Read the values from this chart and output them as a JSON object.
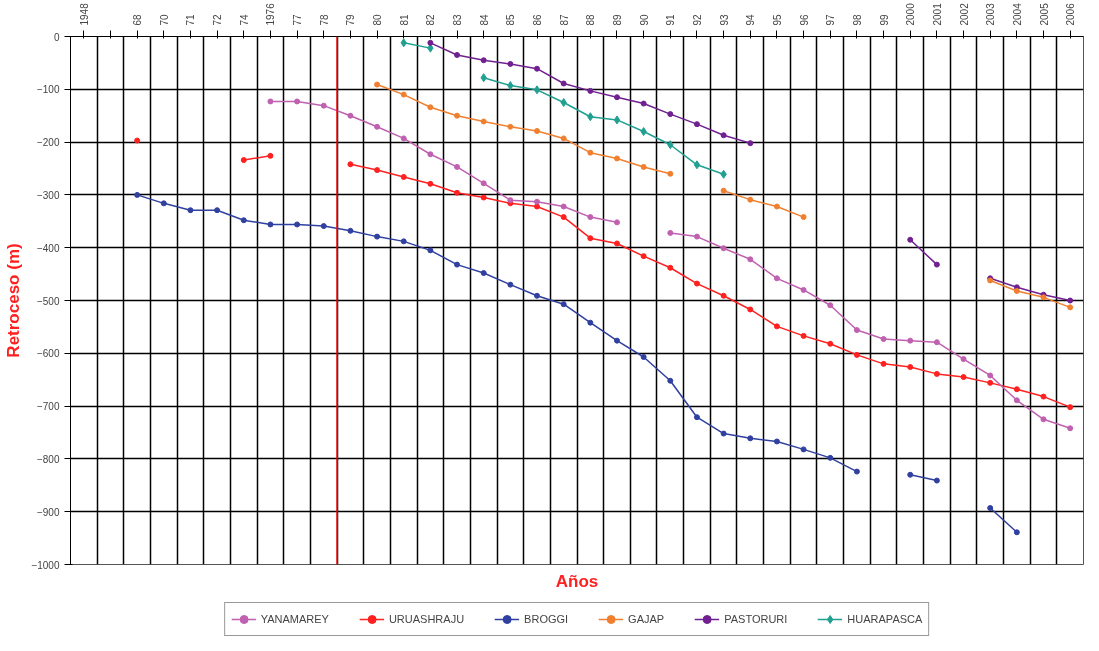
{
  "chart_data": {
    "type": "line",
    "xlabel": "Años",
    "ylabel": "Retroceso (m)",
    "categories": [
      "1948",
      null,
      "68",
      "70",
      "71",
      "72",
      "74",
      "1976",
      "77",
      "78",
      "79",
      "80",
      "81",
      "82",
      "83",
      "84",
      "85",
      "86",
      "87",
      "88",
      "89",
      "90",
      "91",
      "92",
      "93",
      "94",
      "95",
      "96",
      "97",
      "98",
      "99",
      "2000",
      "2001",
      "2002",
      "2003",
      "2004",
      "2005",
      "2006"
    ],
    "ylim": [
      -1000,
      0
    ],
    "yticks": [
      -1000,
      -900,
      -800,
      -700,
      -600,
      -500,
      -400,
      -300,
      -200,
      -100,
      0
    ],
    "grid": true,
    "legend": "bottom",
    "marker": "circle",
    "line_style": "solid",
    "ref_lines": [
      {
        "axis": "x",
        "value": "79",
        "color": "#ff0000"
      }
    ],
    "series": [
      {
        "name": "YANAMAREY",
        "color": "#c060b0",
        "values": [
          null,
          null,
          null,
          null,
          null,
          null,
          null,
          -123,
          -123,
          -131,
          -150,
          -171,
          -193,
          -223,
          -247,
          -278,
          -310,
          -313,
          -322,
          -342,
          -352,
          null,
          -372,
          -379,
          -401,
          -422,
          -458,
          -480,
          -509,
          -556,
          -573,
          -576,
          -579,
          -611,
          -642,
          -689,
          -725,
          -742
        ]
      },
      {
        "name": "URUASHRAJU",
        "color": "#ff2020",
        "values": [
          null,
          null,
          -197,
          null,
          null,
          null,
          -234,
          -226,
          null,
          null,
          -242,
          -253,
          -266,
          -279,
          -296,
          -305,
          -316,
          -322,
          -342,
          -382,
          -392,
          -416,
          -438,
          -468,
          -491,
          -517,
          -549,
          -567,
          -582,
          -603,
          -620,
          -626,
          -639,
          -645,
          -656,
          -668,
          -682,
          -702
        ]
      },
      {
        "name": "BROGGI",
        "color": "#3040a0",
        "values": [
          null,
          null,
          -300,
          -316,
          -329,
          -329,
          -348,
          -356,
          -356,
          -359,
          -368,
          -379,
          -388,
          -405,
          -432,
          -448,
          -470,
          -491,
          -507,
          -542,
          -576,
          -607,
          -652,
          -721,
          -752,
          -761,
          -767,
          -782,
          -798,
          -824,
          null,
          -830,
          -841,
          null,
          -893,
          -939,
          null,
          null
        ]
      },
      {
        "name": "GAJAP",
        "color": "#f08030",
        "values": [
          null,
          null,
          null,
          null,
          null,
          null,
          null,
          null,
          null,
          null,
          null,
          -91,
          -110,
          -134,
          -150,
          -161,
          -171,
          -179,
          -193,
          -220,
          -231,
          -247,
          -260,
          null,
          -292,
          -309,
          -322,
          -342,
          null,
          null,
          null,
          null,
          null,
          null,
          -462,
          -482,
          -494,
          -513
        ]
      },
      {
        "name": "PASTORURI",
        "color": "#702090",
        "values": [
          null,
          null,
          null,
          null,
          null,
          null,
          null,
          null,
          null,
          null,
          null,
          null,
          null,
          -12,
          -35,
          -45,
          -52,
          -61,
          -89,
          -103,
          -115,
          -127,
          -147,
          -166,
          -187,
          -202,
          null,
          null,
          null,
          null,
          null,
          -385,
          -432,
          null,
          -458,
          -475,
          -489,
          -500
        ]
      },
      {
        "name": "HUARAPASCA",
        "color": "#20a090",
        "marker": "diamond",
        "values": [
          null,
          null,
          null,
          null,
          null,
          null,
          null,
          null,
          null,
          null,
          null,
          null,
          -12,
          -22,
          null,
          -78,
          -93,
          -101,
          -125,
          -152,
          -158,
          -180,
          -205,
          -243,
          -261,
          null,
          null,
          null,
          null,
          null,
          null,
          null,
          null,
          null,
          null,
          null,
          null,
          null
        ]
      }
    ]
  }
}
